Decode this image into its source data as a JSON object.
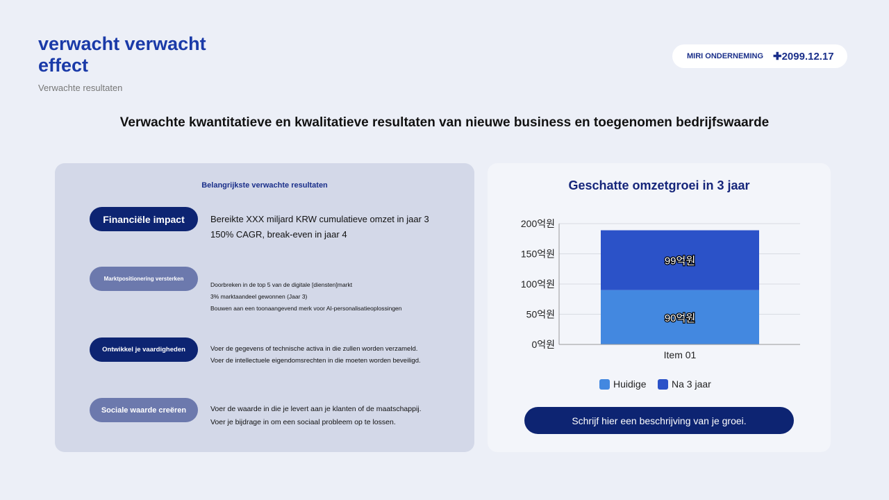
{
  "header": {
    "title": "verwacht verwacht effect",
    "subtitle": "Verwachte resultaten",
    "company": "MIRI ONDERNEMING",
    "date": "2099.12.17"
  },
  "headline": "Verwachte kwantitatieve en kwalitatieve resultaten van nieuwe business en toegenomen bedrijfswaarde",
  "left": {
    "heading": "Belangrijkste verwachte resultaten",
    "items": [
      {
        "label": "Financiële impact",
        "lines": [
          "Bereikte XXX miljard KRW cumulatieve omzet in jaar 3",
          "150% CAGR, break-even in jaar 4"
        ]
      },
      {
        "label": "Marktpositionering versterken",
        "lines": [
          "Doorbreken in de top 5 van de digitale [diensten]markt",
          "3% marktaandeel gewonnen (Jaar 3)",
          "Bouwen aan een toonaangevend merk voor AI-personalisatieoplossingen"
        ]
      },
      {
        "label": "Ontwikkel je vaardigheden",
        "lines": [
          "Voer de gegevens of technische activa in die zullen worden verzameld.",
          "Voer de intellectuele eigendomsrechten in die moeten worden beveiligd."
        ]
      },
      {
        "label": "Sociale waarde creëren",
        "lines": [
          "Voer de waarde in die je levert aan je klanten of de maatschappij.",
          "Voer je bijdrage in om een sociaal probleem op te lossen."
        ]
      }
    ]
  },
  "right": {
    "cta": "Schrijf hier een beschrijving van je groei."
  },
  "chart_data": {
    "type": "bar",
    "stacked": true,
    "title": "Geschatte omzetgroei in 3 jaar",
    "categories": [
      "Item 01"
    ],
    "series": [
      {
        "name": "Huidige",
        "values": [
          90
        ],
        "labels": [
          "90억원"
        ],
        "color": "#4388e0"
      },
      {
        "name": "Na 3 jaar",
        "values": [
          99
        ],
        "labels": [
          "99억원"
        ],
        "color": "#2b52c8"
      }
    ],
    "ylim": [
      0,
      200
    ],
    "yticks": [
      0,
      50,
      100,
      150,
      200
    ],
    "ytick_labels": [
      "0억원",
      "50억원",
      "100억원",
      "150억원",
      "200억원"
    ],
    "grid": true,
    "legend": "bottom"
  }
}
